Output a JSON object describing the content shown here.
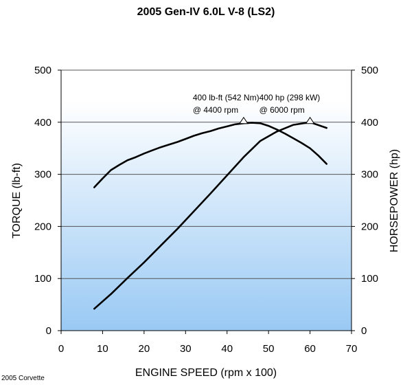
{
  "chart_data": {
    "type": "line",
    "title": "2005 Gen-IV 6.0L V-8 (LS2)",
    "xlabel": "ENGINE SPEED (rpm x 100)",
    "ylabel_left": "TORQUE (lb-ft)",
    "ylabel_right": "HORSEPOWER (hp)",
    "xlim": [
      0,
      70
    ],
    "ylim": [
      0,
      500
    ],
    "xticks": [
      "0",
      "10",
      "20",
      "30",
      "40",
      "50",
      "60",
      "70"
    ],
    "yticks_left": [
      "0",
      "100",
      "200",
      "300",
      "400",
      "500"
    ],
    "yticks_right": [
      "0",
      "100",
      "200",
      "300",
      "400",
      "500"
    ],
    "grid": "horizontal",
    "legend": "none",
    "series": [
      {
        "x": [
          8,
          10,
          12,
          14,
          16,
          18,
          20,
          22,
          24,
          26,
          28,
          30,
          32,
          34,
          36,
          38,
          40,
          42,
          44,
          46,
          48,
          50,
          52,
          54,
          56,
          58,
          60,
          62,
          64
        ],
        "values": [
          275,
          292,
          308,
          318,
          327,
          333,
          340,
          346,
          352,
          357,
          362,
          368,
          374,
          379,
          383,
          388,
          392,
          396,
          398,
          399,
          398,
          393,
          386,
          378,
          369,
          360,
          350,
          336,
          320
        ],
        "axis": "left"
      },
      {
        "x": [
          8,
          12,
          16,
          20,
          24,
          28,
          32,
          36,
          40,
          44,
          48,
          52,
          56,
          60,
          64
        ],
        "values": [
          42,
          70,
          101,
          131,
          163,
          195,
          229,
          263,
          298,
          333,
          364,
          382,
          395,
          400,
          389
        ],
        "axis": "right"
      }
    ],
    "annotations": [
      {
        "line1": "400 lb-ft (542 Nm)",
        "line2": "@ 4400 rpm",
        "x": 44,
        "y": 400
      },
      {
        "line1": "400 hp (298 kW)",
        "line2": "@ 6000 rpm",
        "x": 60,
        "y": 400
      }
    ]
  },
  "footnote": "2005 Corvette"
}
